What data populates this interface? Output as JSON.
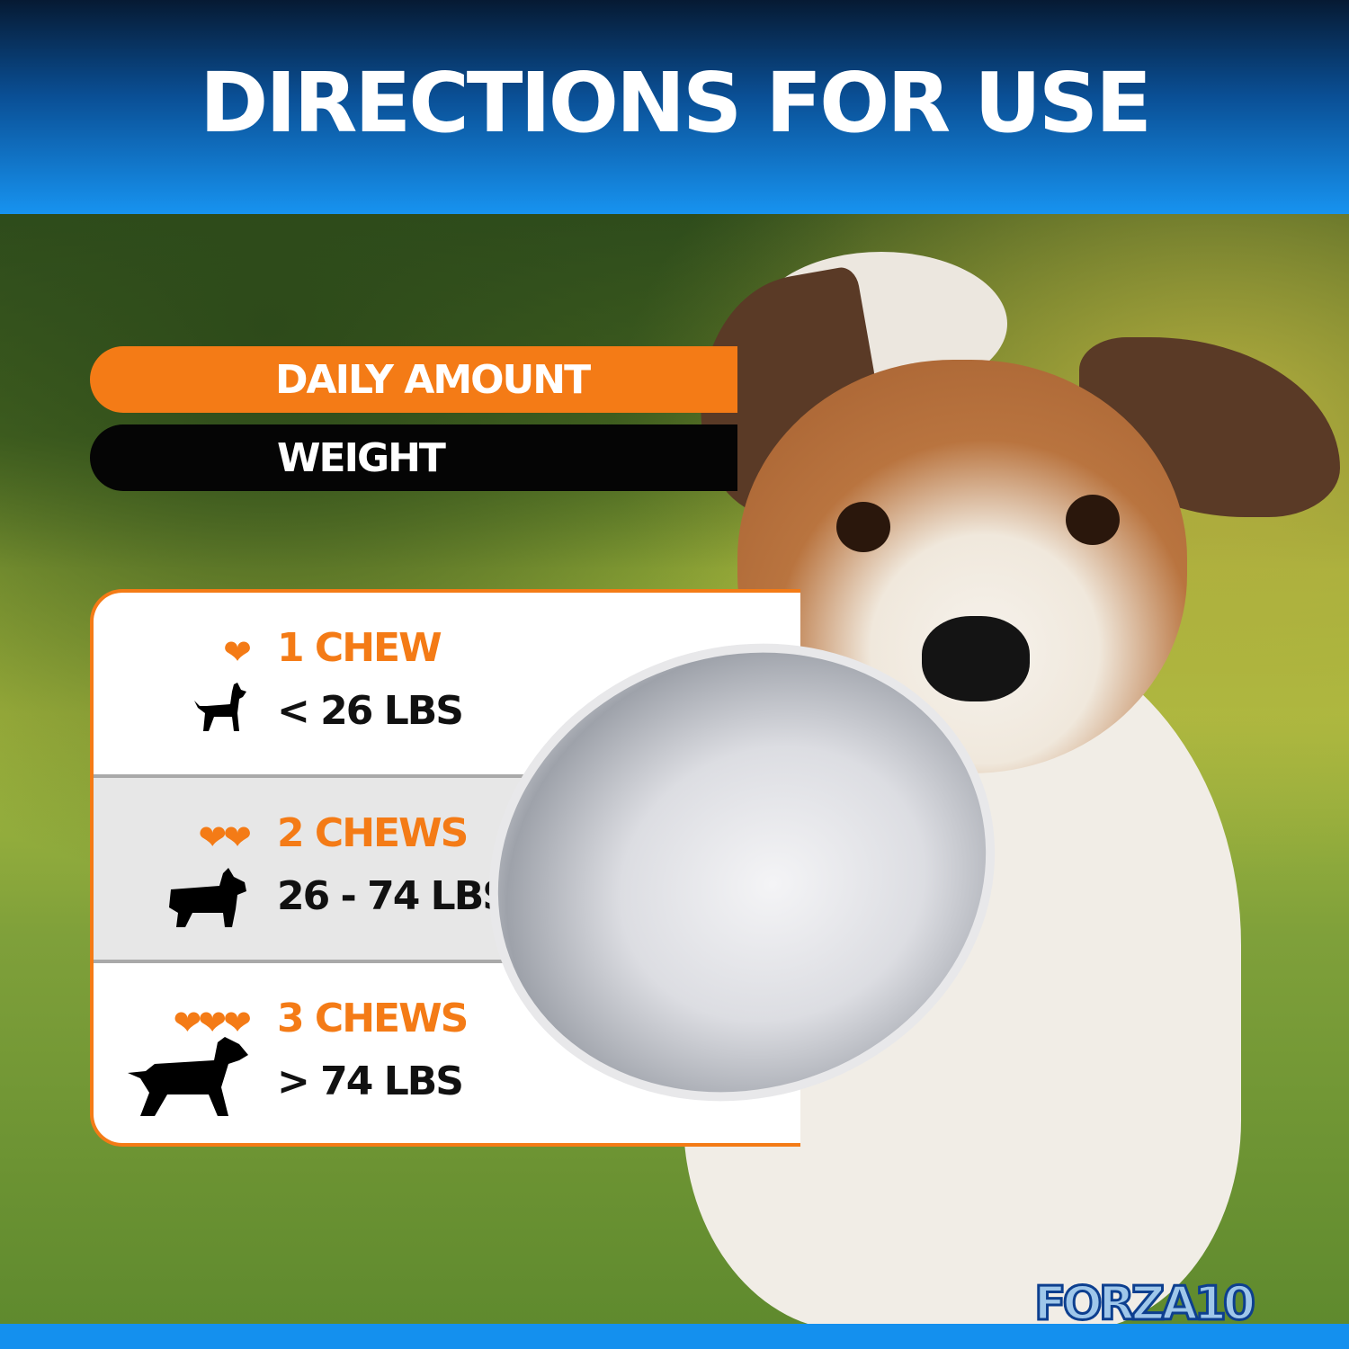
{
  "header": {
    "title": "DIRECTIONS FOR USE"
  },
  "labels": {
    "daily_amount": "DAILY AMOUNT",
    "weight": "WEIGHT"
  },
  "rows": [
    {
      "hearts": 1,
      "amount": "1 CHEW",
      "weight": "< 26 LBS",
      "dog_icon": "small-dog-icon"
    },
    {
      "hearts": 2,
      "amount": "2 CHEWS",
      "weight": "26 - 74 LBS",
      "dog_icon": "medium-dog-icon"
    },
    {
      "hearts": 3,
      "amount": "3 CHEWS",
      "weight": "> 74 LBS",
      "dog_icon": "large-dog-icon"
    }
  ],
  "brand": {
    "logo_text": "FORZA10",
    "accent": "#f47b16",
    "blue": "#1490ee"
  }
}
